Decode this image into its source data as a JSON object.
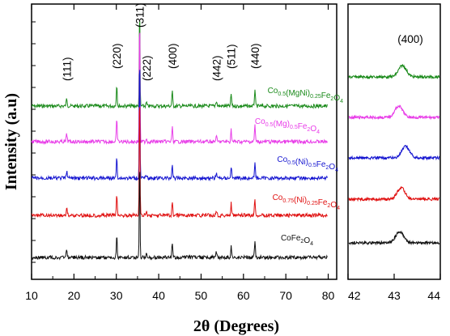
{
  "chart_data": [
    {
      "type": "line",
      "panel": "main",
      "xlabel": "2θ (Degrees)",
      "ylabel": "Intensity (a.u)",
      "xlim": [
        10,
        82
      ],
      "xticks": [
        10,
        20,
        30,
        40,
        50,
        60,
        70,
        80
      ],
      "yticks_labeled": false,
      "peak_labels": [
        {
          "text": "(111)",
          "x": 18.3
        },
        {
          "text": "(220)",
          "x": 30.1
        },
        {
          "text": "(311)",
          "x": 35.5
        },
        {
          "text": "(222)",
          "x": 37.1
        },
        {
          "text": "(400)",
          "x": 43.2
        },
        {
          "text": "(442)",
          "x": 53.6
        },
        {
          "text": "(511)",
          "x": 57.1
        },
        {
          "text": "(440)",
          "x": 62.7
        }
      ],
      "peaks": [
        {
          "x": 18.3,
          "width": 0.18,
          "rel_height": 0.03
        },
        {
          "x": 30.1,
          "width": 0.15,
          "rel_height": 0.09
        },
        {
          "x": 35.5,
          "width": 0.12,
          "rel_height": 0.4
        },
        {
          "x": 37.1,
          "width": 0.15,
          "rel_height": 0.015
        },
        {
          "x": 43.2,
          "width": 0.15,
          "rel_height": 0.06
        },
        {
          "x": 53.6,
          "width": 0.2,
          "rel_height": 0.02
        },
        {
          "x": 57.1,
          "width": 0.15,
          "rel_height": 0.05
        },
        {
          "x": 62.7,
          "width": 0.15,
          "rel_height": 0.07
        }
      ],
      "series": [
        {
          "formula": [
            [
              "Co",
              ""
            ],
            [
              "0.5",
              "sub"
            ],
            [
              "(MgNi)",
              ""
            ],
            [
              "0.25",
              "sub"
            ],
            [
              "Fe",
              ""
            ],
            [
              "2",
              "sub"
            ],
            [
              "O",
              ""
            ],
            [
              "4",
              "sub"
            ]
          ],
          "color": "#1a8a1a",
          "baseline": 0.0,
          "main_peak": 0.42
        },
        {
          "formula": [
            [
              "Co",
              ""
            ],
            [
              "0.5",
              "sub"
            ],
            [
              "(Mg)",
              ""
            ],
            [
              "0.5",
              "sub"
            ],
            [
              "Fe",
              ""
            ],
            [
              "2",
              "sub"
            ],
            [
              "O",
              ""
            ],
            [
              "4",
              "sub"
            ]
          ],
          "color": "#e83de8",
          "baseline": 0.0,
          "main_peak": 0.55
        },
        {
          "formula": [
            [
              "Co",
              ""
            ],
            [
              "0.5",
              "sub"
            ],
            [
              "(Ni)",
              ""
            ],
            [
              "0.5",
              "sub"
            ],
            [
              "Fe",
              ""
            ],
            [
              "2",
              "sub"
            ],
            [
              "O",
              ""
            ],
            [
              "4",
              "sub"
            ]
          ],
          "color": "#1515d0",
          "baseline": 0.0,
          "main_peak": 0.55
        },
        {
          "formula": [
            [
              "Co",
              ""
            ],
            [
              "0.75",
              "sub"
            ],
            [
              "(Ni)",
              ""
            ],
            [
              "0.25",
              "sub"
            ],
            [
              "Fe",
              ""
            ],
            [
              "2",
              "sub"
            ],
            [
              "O",
              ""
            ],
            [
              "4",
              "sub"
            ]
          ],
          "color": "#e01010",
          "baseline": 0.0,
          "main_peak": 0.55
        },
        {
          "formula": [
            [
              "CoFe",
              ""
            ],
            [
              "2",
              "sub"
            ],
            [
              "O",
              ""
            ],
            [
              "4",
              "sub"
            ]
          ],
          "color": "#111111",
          "baseline": 0.0,
          "main_peak": 0.42
        }
      ]
    },
    {
      "type": "line",
      "panel": "zoom",
      "xlim": [
        42,
        44
      ],
      "xticks": [
        42,
        43,
        44
      ],
      "peak_label": "(400)",
      "series_peak_positions": [
        43.18,
        43.1,
        43.25,
        43.15,
        43.12
      ]
    }
  ]
}
